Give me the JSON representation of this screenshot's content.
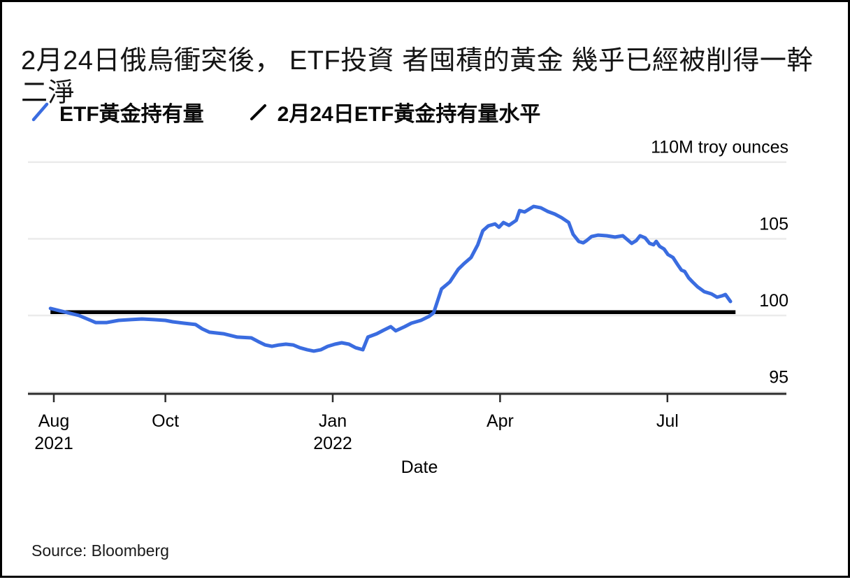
{
  "title": "2月24日俄烏衝突後， ETF投資 者囤積的黃金 幾乎已經被削得一幹 二淨",
  "legend": [
    {
      "label": "ETF黃金持有量",
      "color": "#3a6ce0"
    },
    {
      "label": "2月24日ETF黃金持有量水平",
      "color": "#000000"
    }
  ],
  "source": "Source: Bloomberg",
  "colors": {
    "accent_blue": "#3a6ce0",
    "ref_black": "#000000",
    "grid": "#ebebeb",
    "axis": "#2d2d2d"
  },
  "chart_data": {
    "type": "line",
    "title": "2月24日俄烏衝突後， ETF投資 者囤積的黃金 幾乎已經被削得一幹 二淨",
    "xlabel": "Date",
    "unit_label": "110M troy ounces",
    "grid": true,
    "legend_position": "top-left",
    "x_axis": {
      "unit": "months since Aug 1, 2021",
      "range": [
        -0.5,
        13.1
      ],
      "ticks": [
        {
          "m": 0,
          "label": "Aug",
          "sublabel": "2021"
        },
        {
          "m": 2,
          "label": "Oct"
        },
        {
          "m": 5,
          "label": "Jan",
          "sublabel": "2022"
        },
        {
          "m": 8,
          "label": "Apr"
        },
        {
          "m": 11,
          "label": "Jul"
        }
      ]
    },
    "y_axis": {
      "unit": "M troy ounces",
      "range": [
        94.9,
        110.1
      ],
      "ticks": [
        {
          "v": 110,
          "label": "110M troy ounces"
        },
        {
          "v": 105,
          "label": "105"
        },
        {
          "v": 100,
          "label": "100"
        },
        {
          "v": 95,
          "label": "95"
        }
      ]
    },
    "series": [
      {
        "name": "ETF黃金持有量",
        "color": "#3a6ce0",
        "points": [
          [
            -0.06,
            100.46
          ],
          [
            0.25,
            100.18
          ],
          [
            0.45,
            100.0
          ],
          [
            0.66,
            99.68
          ],
          [
            0.75,
            99.54
          ],
          [
            0.95,
            99.54
          ],
          [
            1.16,
            99.68
          ],
          [
            1.38,
            99.73
          ],
          [
            1.58,
            99.77
          ],
          [
            1.79,
            99.73
          ],
          [
            2.0,
            99.68
          ],
          [
            2.13,
            99.59
          ],
          [
            2.33,
            99.5
          ],
          [
            2.54,
            99.41
          ],
          [
            2.66,
            99.13
          ],
          [
            2.79,
            98.91
          ],
          [
            3.04,
            98.81
          ],
          [
            3.29,
            98.59
          ],
          [
            3.54,
            98.54
          ],
          [
            3.66,
            98.31
          ],
          [
            3.79,
            98.08
          ],
          [
            3.91,
            97.99
          ],
          [
            4.04,
            98.08
          ],
          [
            4.16,
            98.13
          ],
          [
            4.29,
            98.08
          ],
          [
            4.41,
            97.9
          ],
          [
            4.54,
            97.77
          ],
          [
            4.66,
            97.68
          ],
          [
            4.79,
            97.77
          ],
          [
            4.91,
            97.99
          ],
          [
            5.04,
            98.13
          ],
          [
            5.16,
            98.22
          ],
          [
            5.29,
            98.13
          ],
          [
            5.41,
            97.9
          ],
          [
            5.54,
            97.77
          ],
          [
            5.63,
            98.59
          ],
          [
            5.79,
            98.81
          ],
          [
            5.91,
            99.04
          ],
          [
            6.04,
            99.27
          ],
          [
            6.13,
            99.0
          ],
          [
            6.29,
            99.27
          ],
          [
            6.41,
            99.5
          ],
          [
            6.58,
            99.68
          ],
          [
            6.73,
            99.95
          ],
          [
            6.81,
            100.18
          ],
          [
            6.95,
            101.73
          ],
          [
            7.1,
            102.19
          ],
          [
            7.25,
            103.01
          ],
          [
            7.35,
            103.37
          ],
          [
            7.48,
            103.78
          ],
          [
            7.6,
            104.61
          ],
          [
            7.69,
            105.52
          ],
          [
            7.79,
            105.84
          ],
          [
            7.91,
            105.97
          ],
          [
            7.98,
            105.75
          ],
          [
            8.06,
            106.06
          ],
          [
            8.16,
            105.88
          ],
          [
            8.29,
            106.2
          ],
          [
            8.35,
            106.84
          ],
          [
            8.44,
            106.75
          ],
          [
            8.6,
            107.11
          ],
          [
            8.73,
            107.02
          ],
          [
            8.85,
            106.79
          ],
          [
            8.98,
            106.61
          ],
          [
            9.1,
            106.38
          ],
          [
            9.23,
            106.06
          ],
          [
            9.31,
            105.29
          ],
          [
            9.41,
            104.83
          ],
          [
            9.49,
            104.74
          ],
          [
            9.55,
            104.88
          ],
          [
            9.64,
            105.15
          ],
          [
            9.76,
            105.24
          ],
          [
            9.91,
            105.2
          ],
          [
            10.06,
            105.11
          ],
          [
            10.2,
            105.2
          ],
          [
            10.29,
            104.92
          ],
          [
            10.36,
            104.7
          ],
          [
            10.44,
            104.88
          ],
          [
            10.51,
            105.2
          ],
          [
            10.6,
            105.06
          ],
          [
            10.68,
            104.7
          ],
          [
            10.75,
            104.61
          ],
          [
            10.8,
            104.83
          ],
          [
            10.86,
            104.51
          ],
          [
            10.94,
            104.33
          ],
          [
            11.01,
            103.97
          ],
          [
            11.1,
            103.78
          ],
          [
            11.18,
            103.33
          ],
          [
            11.25,
            102.96
          ],
          [
            11.31,
            102.87
          ],
          [
            11.38,
            102.46
          ],
          [
            11.45,
            102.19
          ],
          [
            11.54,
            101.87
          ],
          [
            11.66,
            101.55
          ],
          [
            11.79,
            101.41
          ],
          [
            11.89,
            101.19
          ],
          [
            11.98,
            101.28
          ],
          [
            12.04,
            101.37
          ],
          [
            12.13,
            100.91
          ]
        ]
      },
      {
        "name": "2月24日ETF黃金持有量水平",
        "color": "#000000",
        "type": "reference-line",
        "value": 100.22,
        "x_range": [
          -0.06,
          12.22
        ]
      }
    ]
  }
}
